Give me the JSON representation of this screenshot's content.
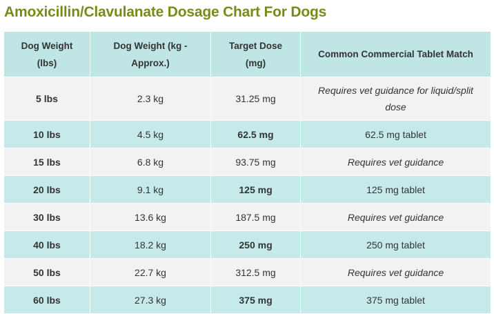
{
  "header": {
    "title": "Amoxicillin/Clavulanate Dosage Chart For Dogs"
  },
  "table": {
    "columns": [
      "Dog Weight (lbs)",
      "Dog Weight (kg - Approx.)",
      "Target Dose (mg)",
      "Common Commercial Tablet Match"
    ],
    "rows": [
      [
        "5 lbs",
        "2.3 kg",
        "31.25 mg",
        "Requires vet guidance for liquid/split dose"
      ],
      [
        "10 lbs",
        "4.5 kg",
        "62.5 mg",
        "62.5 mg tablet"
      ],
      [
        "15 lbs",
        "6.8 kg",
        "93.75 mg",
        "Requires vet guidance"
      ],
      [
        "20 lbs",
        "9.1 kg",
        "125 mg",
        "125 mg tablet"
      ],
      [
        "30 lbs",
        "13.6 kg",
        "187.5 mg",
        "Requires vet guidance"
      ],
      [
        "40 lbs",
        "18.2 kg",
        "250 mg",
        "250 mg tablet"
      ],
      [
        "50 lbs",
        "22.7 kg",
        "312.5 mg",
        "Requires vet guidance"
      ],
      [
        "60 lbs",
        "27.3 kg",
        "375 mg",
        "375 mg tablet"
      ]
    ]
  }
}
